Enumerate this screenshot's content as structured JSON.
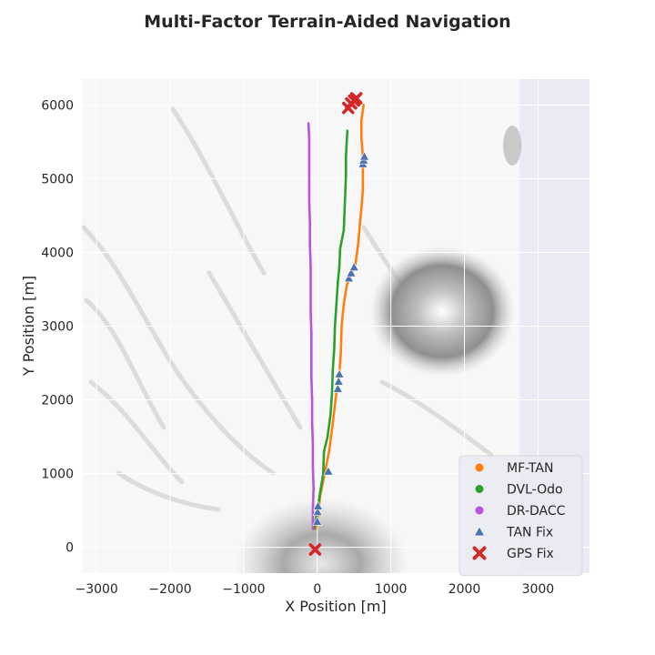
{
  "chart_data": {
    "type": "scatter",
    "title": "Multi-Factor Terrain-Aided Navigation",
    "xlabel": "X Position [m]",
    "ylabel": "Y Position [m]",
    "xlim": [
      -3200,
      3700
    ],
    "ylim": [
      -350,
      6350
    ],
    "xticks": [
      -3000,
      -2000,
      -1000,
      0,
      1000,
      2000,
      3000
    ],
    "yticks": [
      0,
      1000,
      2000,
      3000,
      4000,
      5000,
      6000
    ],
    "grid": true,
    "background": "#eaeaf2",
    "terrain_extent": {
      "x": [
        -3200,
        2750
      ],
      "y": [
        -350,
        6350
      ]
    },
    "legend_position": "lower-right",
    "series": [
      {
        "name": "MF-TAN",
        "color": "#ff7f0e",
        "marker": "line",
        "points": [
          [
            -20,
            250
          ],
          [
            10,
            450
          ],
          [
            40,
            700
          ],
          [
            80,
            900
          ],
          [
            110,
            1050
          ],
          [
            160,
            1300
          ],
          [
            200,
            1600
          ],
          [
            230,
            1850
          ],
          [
            260,
            2100
          ],
          [
            300,
            2350
          ],
          [
            320,
            2650
          ],
          [
            330,
            3000
          ],
          [
            360,
            3300
          ],
          [
            400,
            3550
          ],
          [
            480,
            3750
          ],
          [
            520,
            3850
          ],
          [
            560,
            4150
          ],
          [
            580,
            4400
          ],
          [
            600,
            4600
          ],
          [
            620,
            4850
          ],
          [
            620,
            5050
          ],
          [
            620,
            5300
          ],
          [
            600,
            5550
          ],
          [
            600,
            5800
          ],
          [
            630,
            6000
          ]
        ]
      },
      {
        "name": "DVL-Odo",
        "color": "#2ca02c",
        "marker": "line",
        "points": [
          [
            -40,
            250
          ],
          [
            0,
            500
          ],
          [
            40,
            750
          ],
          [
            80,
            1000
          ],
          [
            90,
            1300
          ],
          [
            140,
            1500
          ],
          [
            180,
            1800
          ],
          [
            200,
            2100
          ],
          [
            210,
            2400
          ],
          [
            230,
            2700
          ],
          [
            240,
            3000
          ],
          [
            260,
            3300
          ],
          [
            280,
            3600
          ],
          [
            300,
            3800
          ],
          [
            310,
            4050
          ],
          [
            360,
            4300
          ],
          [
            370,
            4550
          ],
          [
            380,
            4800
          ],
          [
            390,
            5050
          ],
          [
            390,
            5300
          ],
          [
            400,
            5500
          ],
          [
            410,
            5650
          ]
        ]
      },
      {
        "name": "DR-DACC",
        "color": "#b856d7",
        "marker": "line",
        "points": [
          [
            -60,
            250
          ],
          [
            -60,
            500
          ],
          [
            -50,
            800
          ],
          [
            -60,
            1100
          ],
          [
            -60,
            1400
          ],
          [
            -70,
            1700
          ],
          [
            -70,
            2000
          ],
          [
            -80,
            2300
          ],
          [
            -80,
            2600
          ],
          [
            -80,
            2900
          ],
          [
            -90,
            3200
          ],
          [
            -90,
            3500
          ],
          [
            -90,
            3800
          ],
          [
            -100,
            4100
          ],
          [
            -100,
            4400
          ],
          [
            -110,
            4700
          ],
          [
            -110,
            5000
          ],
          [
            -110,
            5300
          ],
          [
            -110,
            5550
          ],
          [
            -120,
            5750
          ]
        ]
      },
      {
        "name": "TAN Fix",
        "color": "#4c72b0",
        "marker": "triangle",
        "points": [
          [
            0,
            350
          ],
          [
            5,
            480
          ],
          [
            10,
            560
          ],
          [
            150,
            1030
          ],
          [
            280,
            2150
          ],
          [
            290,
            2250
          ],
          [
            300,
            2350
          ],
          [
            430,
            3650
          ],
          [
            460,
            3720
          ],
          [
            500,
            3800
          ],
          [
            620,
            5200
          ],
          [
            630,
            5250
          ],
          [
            640,
            5300
          ]
        ]
      },
      {
        "name": "GPS Fix",
        "color": "#d62728",
        "marker": "x",
        "points": [
          [
            -30,
            -30
          ],
          [
            420,
            5960
          ],
          [
            460,
            6020
          ],
          [
            500,
            6060
          ],
          [
            530,
            6090
          ]
        ]
      }
    ]
  }
}
